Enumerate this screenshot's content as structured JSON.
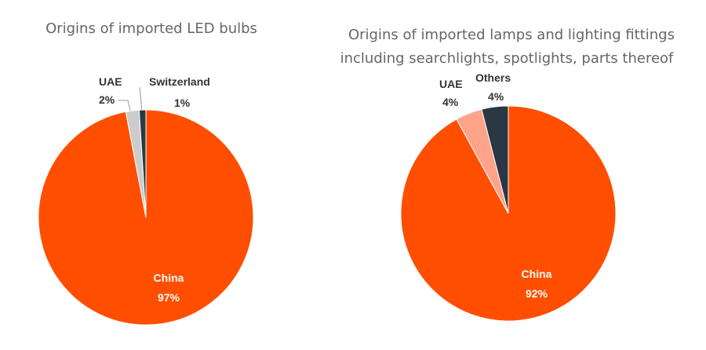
{
  "colors": {
    "china": "#FF4E00",
    "uae_left": "#CCCCCC",
    "switzerland": "#2B3743",
    "uae_right": "#FFA38A",
    "others": "#2B3743"
  },
  "chart_data": [
    {
      "type": "pie",
      "title": "Origins of imported LED bulbs",
      "slices": [
        {
          "label": "China",
          "value": 97,
          "value_label": "97%",
          "color": "#FF4E00"
        },
        {
          "label": "UAE",
          "value": 2,
          "value_label": "2%",
          "color": "#CCCCCC"
        },
        {
          "label": "Switzerland",
          "value": 1,
          "value_label": "1%",
          "color": "#2B3743"
        }
      ]
    },
    {
      "type": "pie",
      "title": "Origins of imported lamps and lighting fittings including searchlights, spotlights, parts thereof",
      "title_lines": [
        "Origins of imported lamps and lighting fittings",
        "including searchlights, spotlights, parts thereof"
      ],
      "slices": [
        {
          "label": "China",
          "value": 92,
          "value_label": "92%",
          "color": "#FF4E00"
        },
        {
          "label": "UAE",
          "value": 4,
          "value_label": "4%",
          "color": "#FFA38A"
        },
        {
          "label": "Others",
          "value": 4,
          "value_label": "4%",
          "color": "#2B3743"
        }
      ]
    }
  ]
}
